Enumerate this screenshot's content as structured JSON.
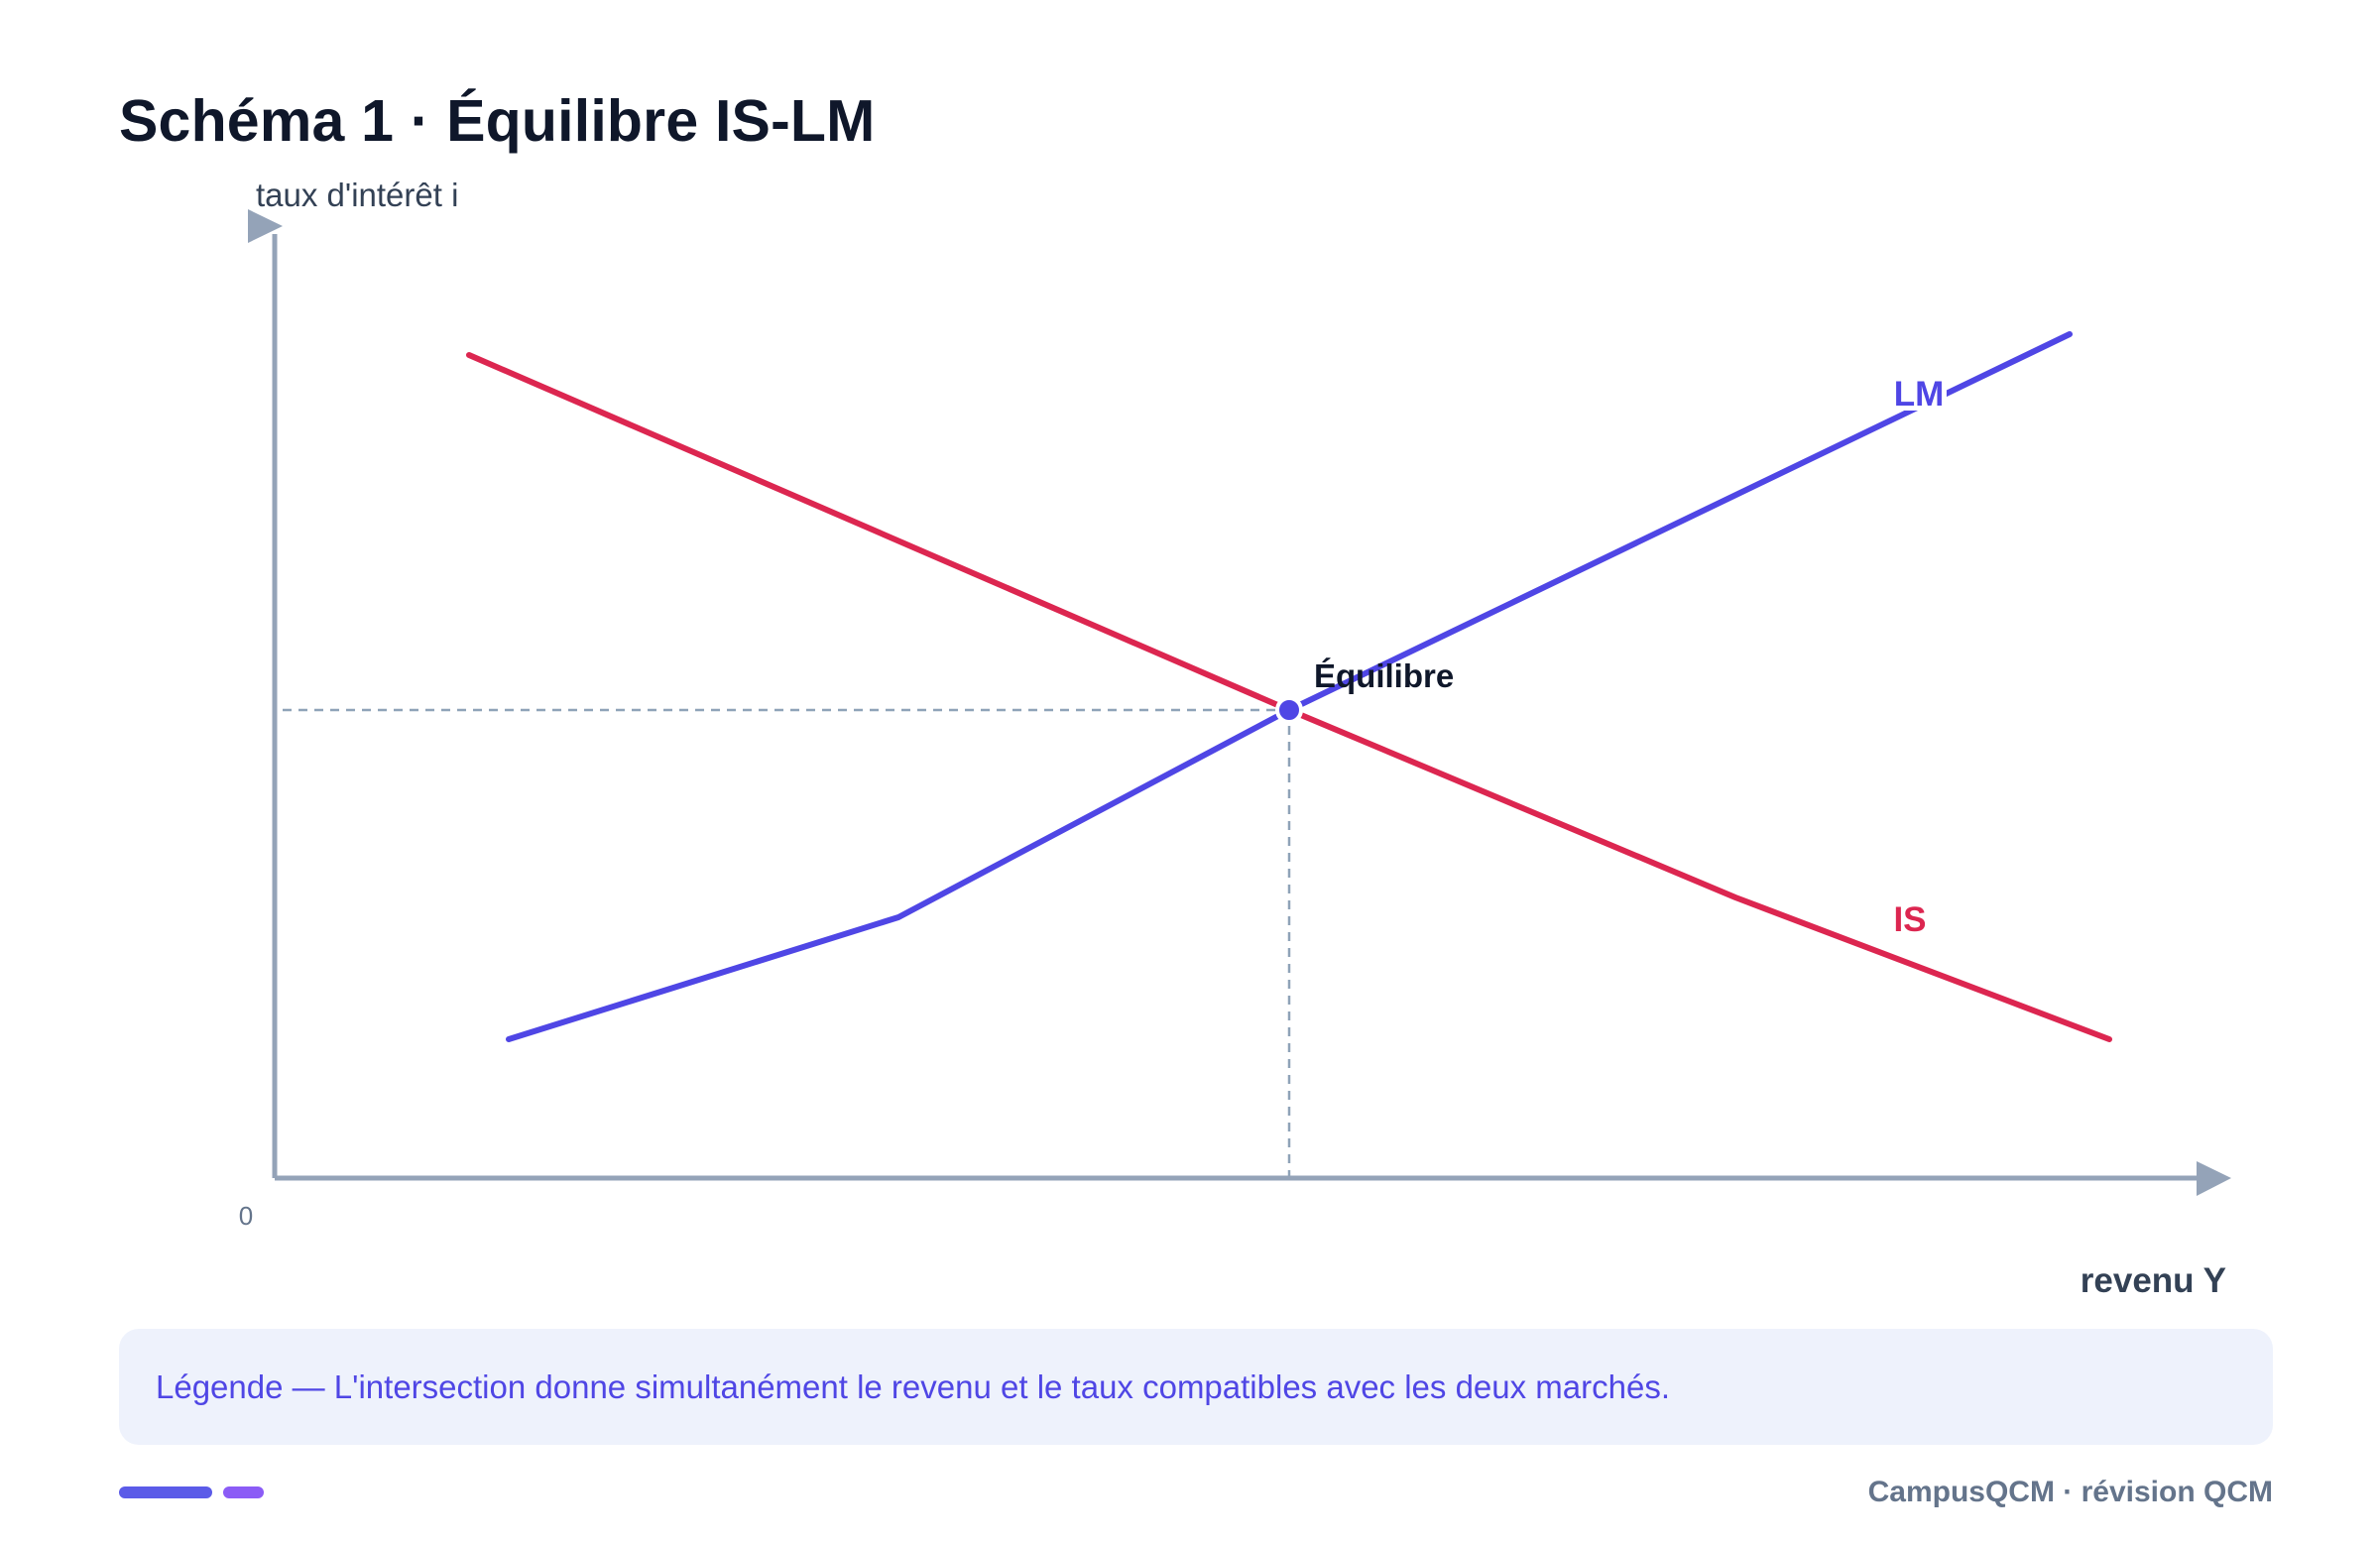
{
  "header": {
    "title": "Schéma 1 · Équilibre IS-LM"
  },
  "diagram": {
    "y_axis_label": "taux d'intérêt i",
    "x_axis_label": "revenu Y",
    "origin_label": "0",
    "curves": [
      {
        "name": "LM",
        "label": "LM",
        "color": "#4f46e5",
        "slope": "upward"
      },
      {
        "name": "IS",
        "label": "IS",
        "color": "#dc2650",
        "slope": "downward"
      }
    ],
    "equilibrium_label": "Équilibre",
    "axis_color": "#94a3b8",
    "guide_color": "#8fa3b8"
  },
  "legend": {
    "text": "Légende — L'intersection donne simultanément le revenu et le taux compatibles avec les deux marchés."
  },
  "footer": {
    "text": "CampusQCM · révision QCM",
    "accent_colors": [
      "#5b5be8",
      "#8b5cf6"
    ]
  }
}
